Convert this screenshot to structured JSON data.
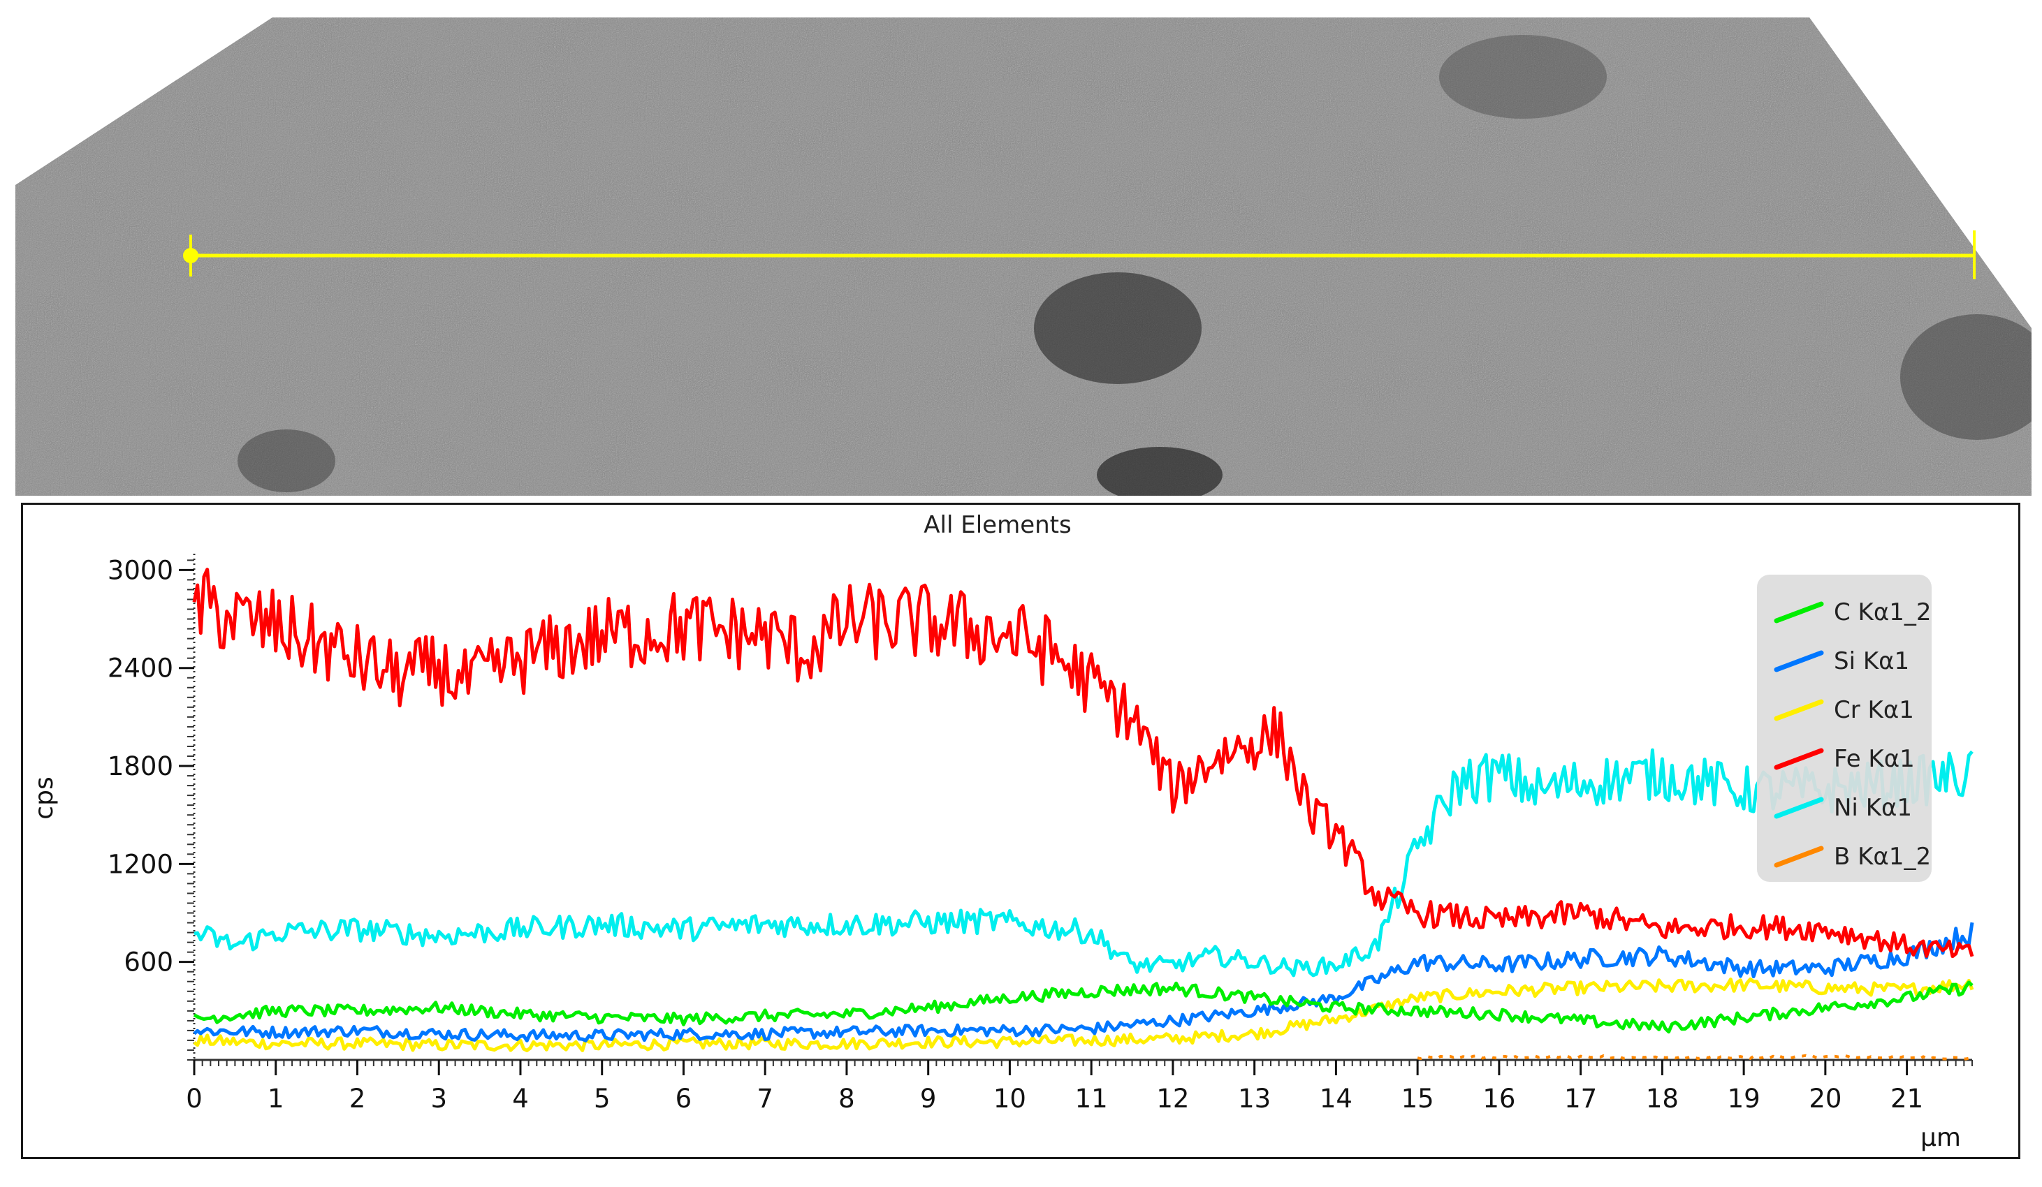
{
  "micrograph": {
    "description_free": true,
    "line_marker_color": "#ffff00"
  },
  "chart_data": {
    "type": "line",
    "title": "All Elements",
    "xlabel": "µm",
    "ylabel": "cps",
    "xlim": [
      0,
      21.8
    ],
    "ylim": [
      0,
      3100
    ],
    "x_ticks": [
      "0",
      "1",
      "2",
      "3",
      "4",
      "5",
      "6",
      "7",
      "8",
      "9",
      "10",
      "11",
      "12",
      "13",
      "14",
      "15",
      "16",
      "17",
      "18",
      "19",
      "20",
      "21"
    ],
    "y_ticks": [
      "600",
      "1200",
      "1800",
      "2400",
      "3000"
    ],
    "legend_position": "top-right",
    "series": [
      {
        "name": "C Kα1_2",
        "color": "#00ee00",
        "x": [
          0,
          1,
          2,
          3,
          4,
          5,
          6,
          7,
          8,
          9,
          10,
          11,
          12,
          13,
          14,
          15,
          16,
          17,
          18,
          19,
          20,
          21,
          21.8
        ],
        "y": [
          250,
          300,
          300,
          320,
          280,
          260,
          250,
          270,
          280,
          320,
          380,
          420,
          440,
          380,
          320,
          300,
          280,
          240,
          200,
          260,
          320,
          380,
          450
        ]
      },
      {
        "name": "Si Kα1",
        "color": "#0077ff",
        "x": [
          0,
          1,
          2,
          3,
          4,
          5,
          6,
          7,
          8,
          9,
          10,
          11,
          12,
          13,
          14,
          15,
          16,
          17,
          18,
          19,
          20,
          21,
          21.8
        ],
        "y": [
          180,
          170,
          180,
          160,
          150,
          150,
          160,
          160,
          170,
          180,
          180,
          190,
          240,
          300,
          380,
          600,
          580,
          620,
          640,
          560,
          560,
          640,
          780
        ]
      },
      {
        "name": "Cr Kα1",
        "color": "#ffee00",
        "x": [
          0,
          1,
          2,
          3,
          4,
          5,
          6,
          7,
          8,
          9,
          10,
          11,
          12,
          13,
          14,
          15,
          16,
          17,
          18,
          19,
          20,
          21,
          21.8
        ],
        "y": [
          120,
          100,
          100,
          90,
          90,
          90,
          100,
          100,
          100,
          110,
          110,
          120,
          130,
          160,
          250,
          380,
          420,
          440,
          450,
          460,
          440,
          430,
          470
        ]
      },
      {
        "name": "Fe Kα1",
        "color": "#ff0000",
        "x": [
          0,
          0.5,
          1,
          2,
          2.5,
          3,
          3.3,
          4,
          5,
          6,
          7,
          7.5,
          8,
          9,
          10,
          10.5,
          11,
          11.5,
          12,
          12.5,
          13,
          13.3,
          13.7,
          14,
          14.5,
          15,
          16,
          17,
          18,
          19,
          20,
          21,
          21.8
        ],
        "y": [
          2800,
          2700,
          2650,
          2450,
          2350,
          2400,
          2300,
          2450,
          2600,
          2650,
          2600,
          2500,
          2680,
          2680,
          2600,
          2500,
          2300,
          2100,
          1650,
          1850,
          1950,
          2000,
          1500,
          1400,
          1000,
          900,
          850,
          900,
          800,
          820,
          800,
          700,
          650
        ]
      },
      {
        "name": "Ni Kα1",
        "color": "#00eeee",
        "x": [
          0,
          0.5,
          1,
          2,
          3,
          4,
          5,
          6,
          7,
          8,
          9,
          9.8,
          10.5,
          11,
          11.5,
          12,
          12.5,
          13,
          13.5,
          14,
          14.5,
          15,
          15.5,
          16,
          16.5,
          17,
          18,
          19,
          20,
          21,
          21.8
        ],
        "y": [
          780,
          700,
          780,
          800,
          760,
          800,
          830,
          800,
          830,
          830,
          840,
          850,
          810,
          780,
          580,
          580,
          640,
          600,
          560,
          580,
          700,
          1300,
          1700,
          1750,
          1650,
          1700,
          1750,
          1650,
          1650,
          1700,
          1750
        ]
      },
      {
        "name": "B Kα1_2",
        "color": "#ff8800",
        "x": [
          15,
          15.5,
          16,
          17,
          18,
          19,
          20,
          21,
          21.8
        ],
        "y": [
          10,
          20,
          15,
          20,
          15,
          15,
          20,
          15,
          10
        ]
      }
    ]
  }
}
